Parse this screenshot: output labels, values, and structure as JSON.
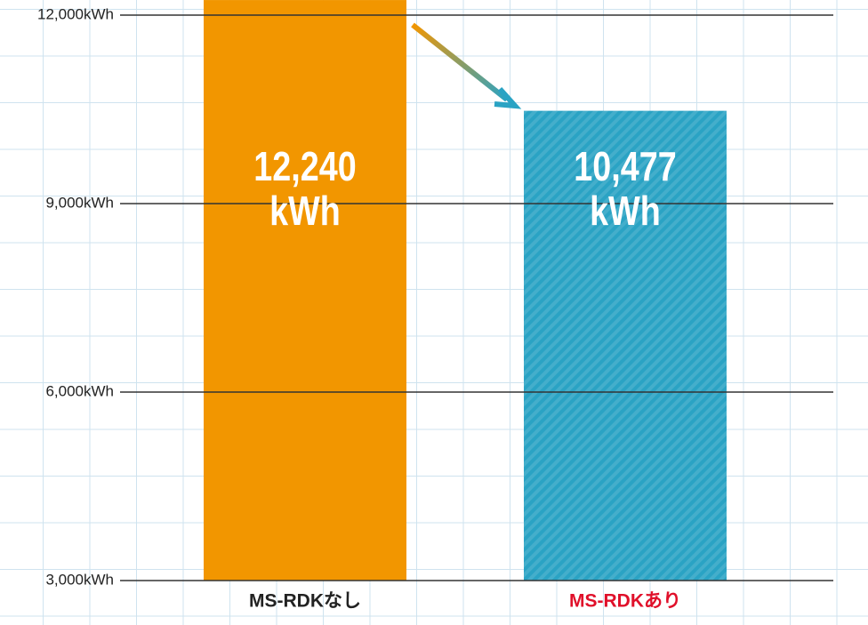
{
  "chart_data": {
    "type": "bar",
    "categories": [
      "MS-RDKなし",
      "MS-RDKあり"
    ],
    "values": [
      12240,
      10477
    ],
    "value_labels": [
      "12,240\nkWh",
      "10,477\nkWh"
    ],
    "colors": [
      "#f29600",
      "#2aa3c4"
    ],
    "label_colors": [
      "#222222",
      "#e0102a"
    ],
    "ylim": [
      3000,
      12000
    ],
    "yticks": [
      {
        "value": 3000,
        "label": "3,000kWh"
      },
      {
        "value": 6000,
        "label": "6,000kWh"
      },
      {
        "value": 9000,
        "label": "9,000kWh"
      },
      {
        "value": 12000,
        "label": "12,000kWh"
      }
    ]
  }
}
